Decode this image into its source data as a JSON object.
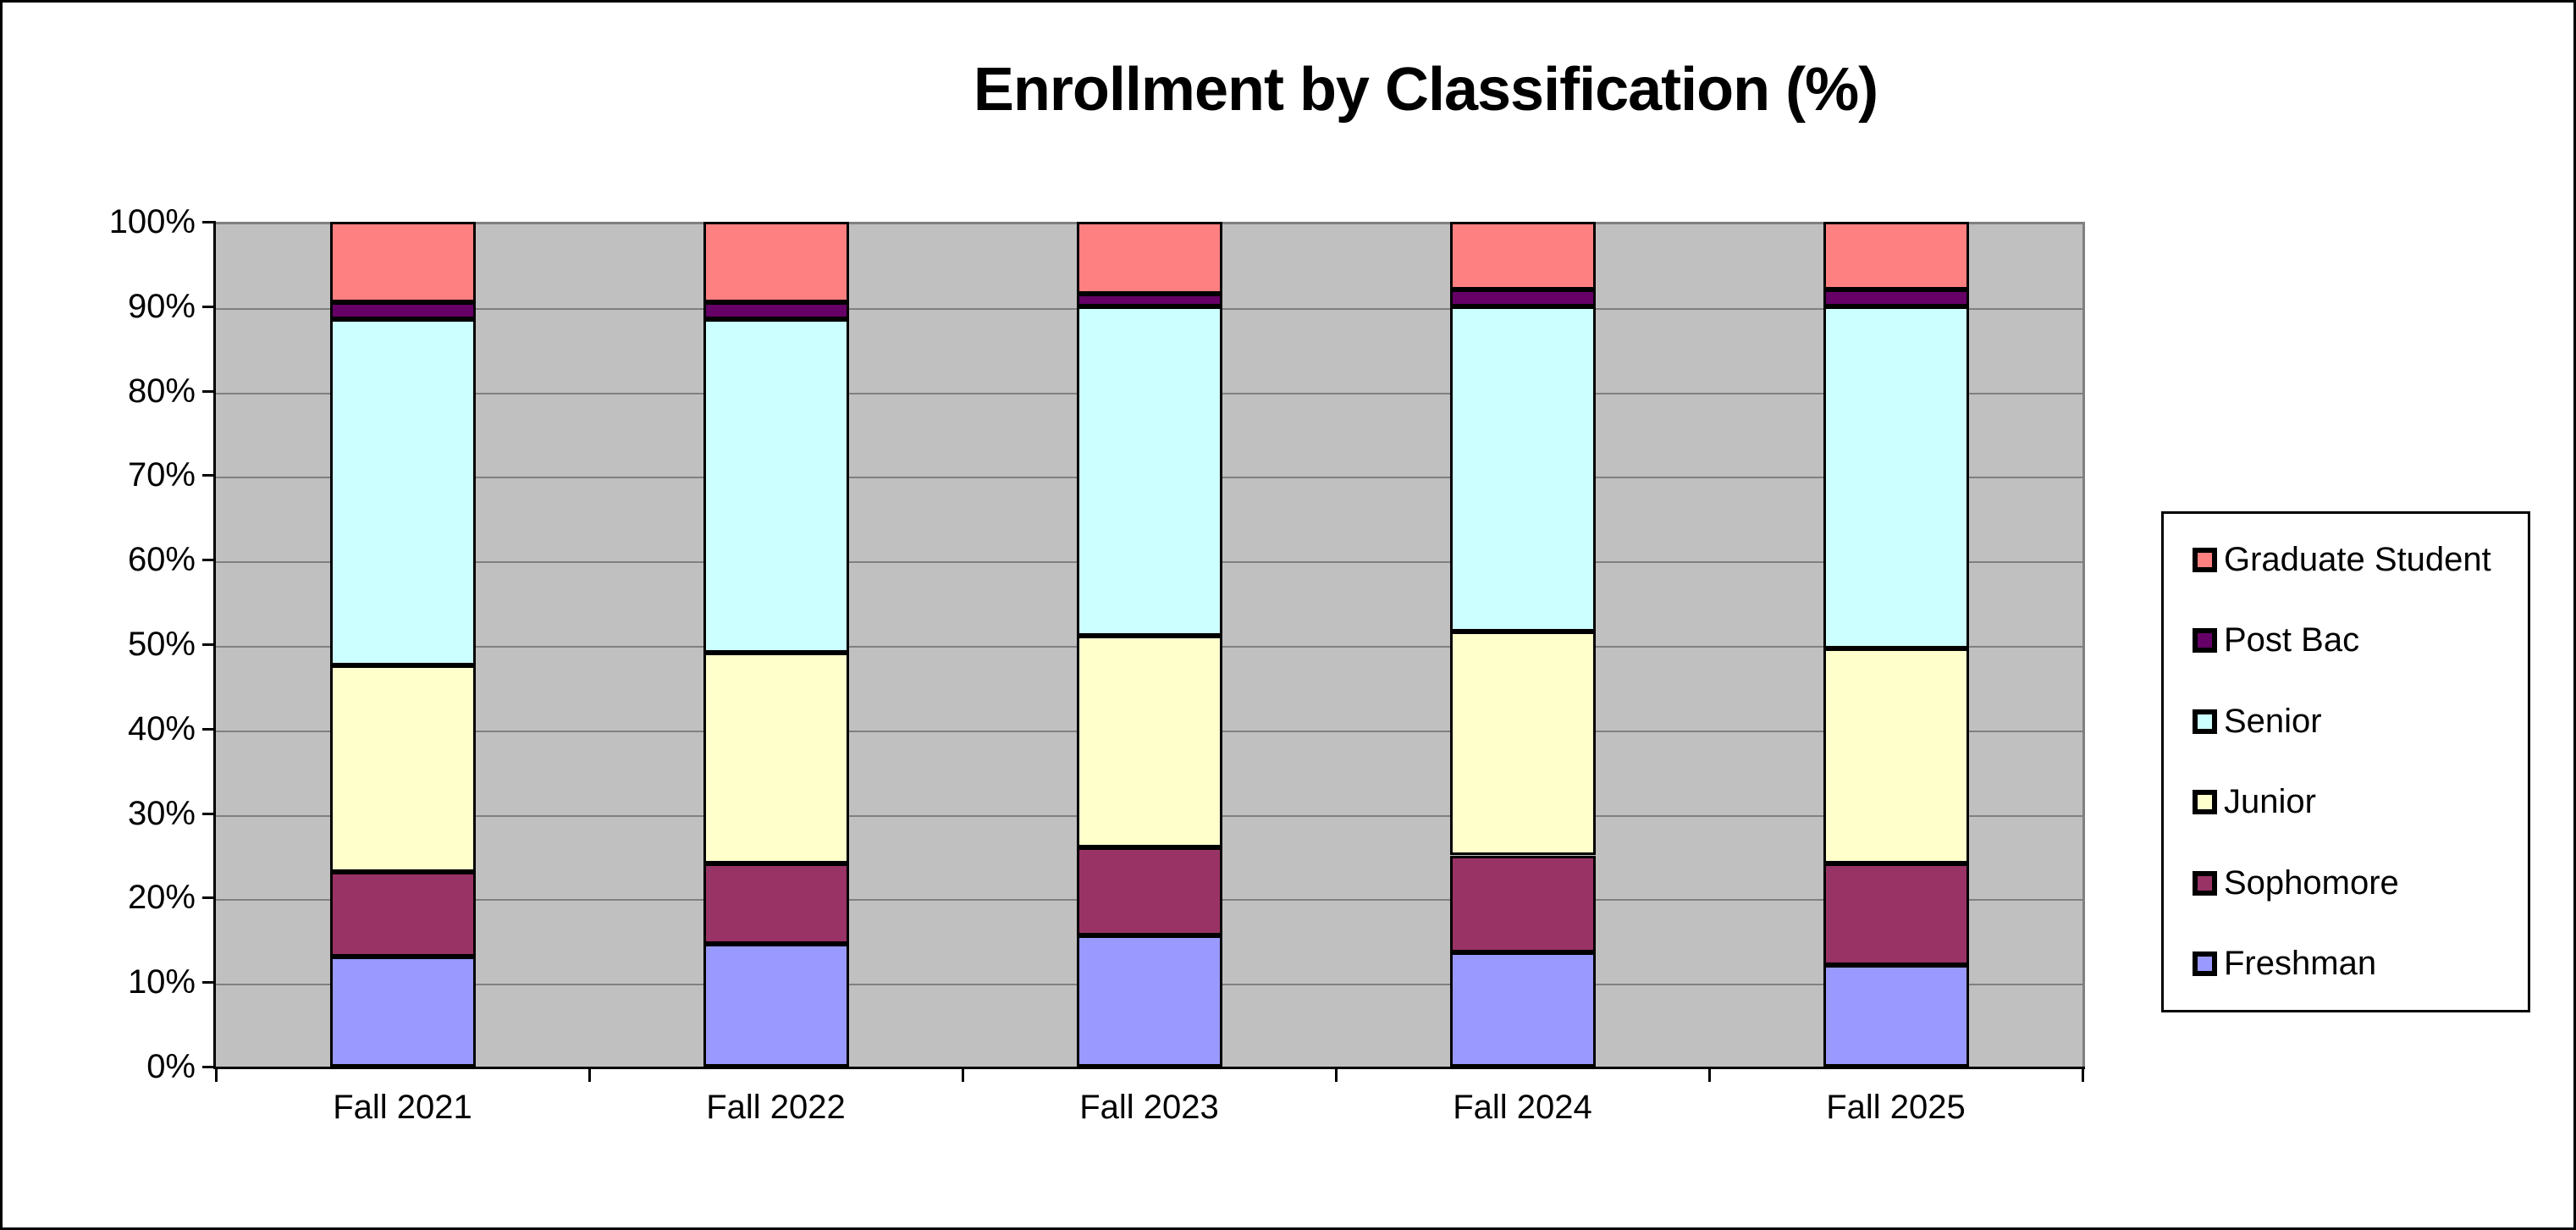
{
  "title": "Enrollment by Classification (%)",
  "colors": {
    "plot_background": "#C0C0C0",
    "gridline": "#808080",
    "axis": "#000000",
    "canvas_border": "#000000",
    "legend_background": "#FFFFFF"
  },
  "chart_data": {
    "type": "bar",
    "subtype": "stacked-100-percent",
    "title": "Enrollment by Classification (%)",
    "categories": [
      "Fall 2021",
      "Fall 2022",
      "Fall 2023",
      "Fall 2024",
      "Fall 2025"
    ],
    "series": [
      {
        "name": "Freshman",
        "color": "#9999FF",
        "values": [
          13.0,
          14.5,
          15.5,
          13.5,
          12.0
        ]
      },
      {
        "name": "Sophomore",
        "color": "#993366",
        "values": [
          10.0,
          9.5,
          10.5,
          11.5,
          12.0
        ]
      },
      {
        "name": "Junior",
        "color": "#FFFFCC",
        "values": [
          24.5,
          25.0,
          25.0,
          26.5,
          25.5
        ]
      },
      {
        "name": "Senior",
        "color": "#CCFFFF",
        "values": [
          41.0,
          39.5,
          39.0,
          38.5,
          40.5
        ]
      },
      {
        "name": "Post Bac",
        "color": "#660066",
        "values": [
          2.0,
          2.0,
          1.5,
          2.0,
          2.0
        ]
      },
      {
        "name": "Graduate Student",
        "color": "#FF8080",
        "values": [
          9.5,
          9.5,
          8.5,
          8.0,
          8.0
        ]
      }
    ],
    "stack_order_bottom_to_top": [
      "Freshman",
      "Sophomore",
      "Junior",
      "Senior",
      "Post Bac",
      "Graduate Student"
    ],
    "legend_order_top_to_bottom": [
      "Graduate Student",
      "Post Bac",
      "Senior",
      "Junior",
      "Sophomore",
      "Freshman"
    ],
    "legend_position": "right",
    "grid": true,
    "y_axis": {
      "min": 0,
      "max": 100,
      "step": 10,
      "tick_labels": [
        "0%",
        "10%",
        "20%",
        "30%",
        "40%",
        "50%",
        "60%",
        "70%",
        "80%",
        "90%",
        "100%"
      ]
    }
  }
}
